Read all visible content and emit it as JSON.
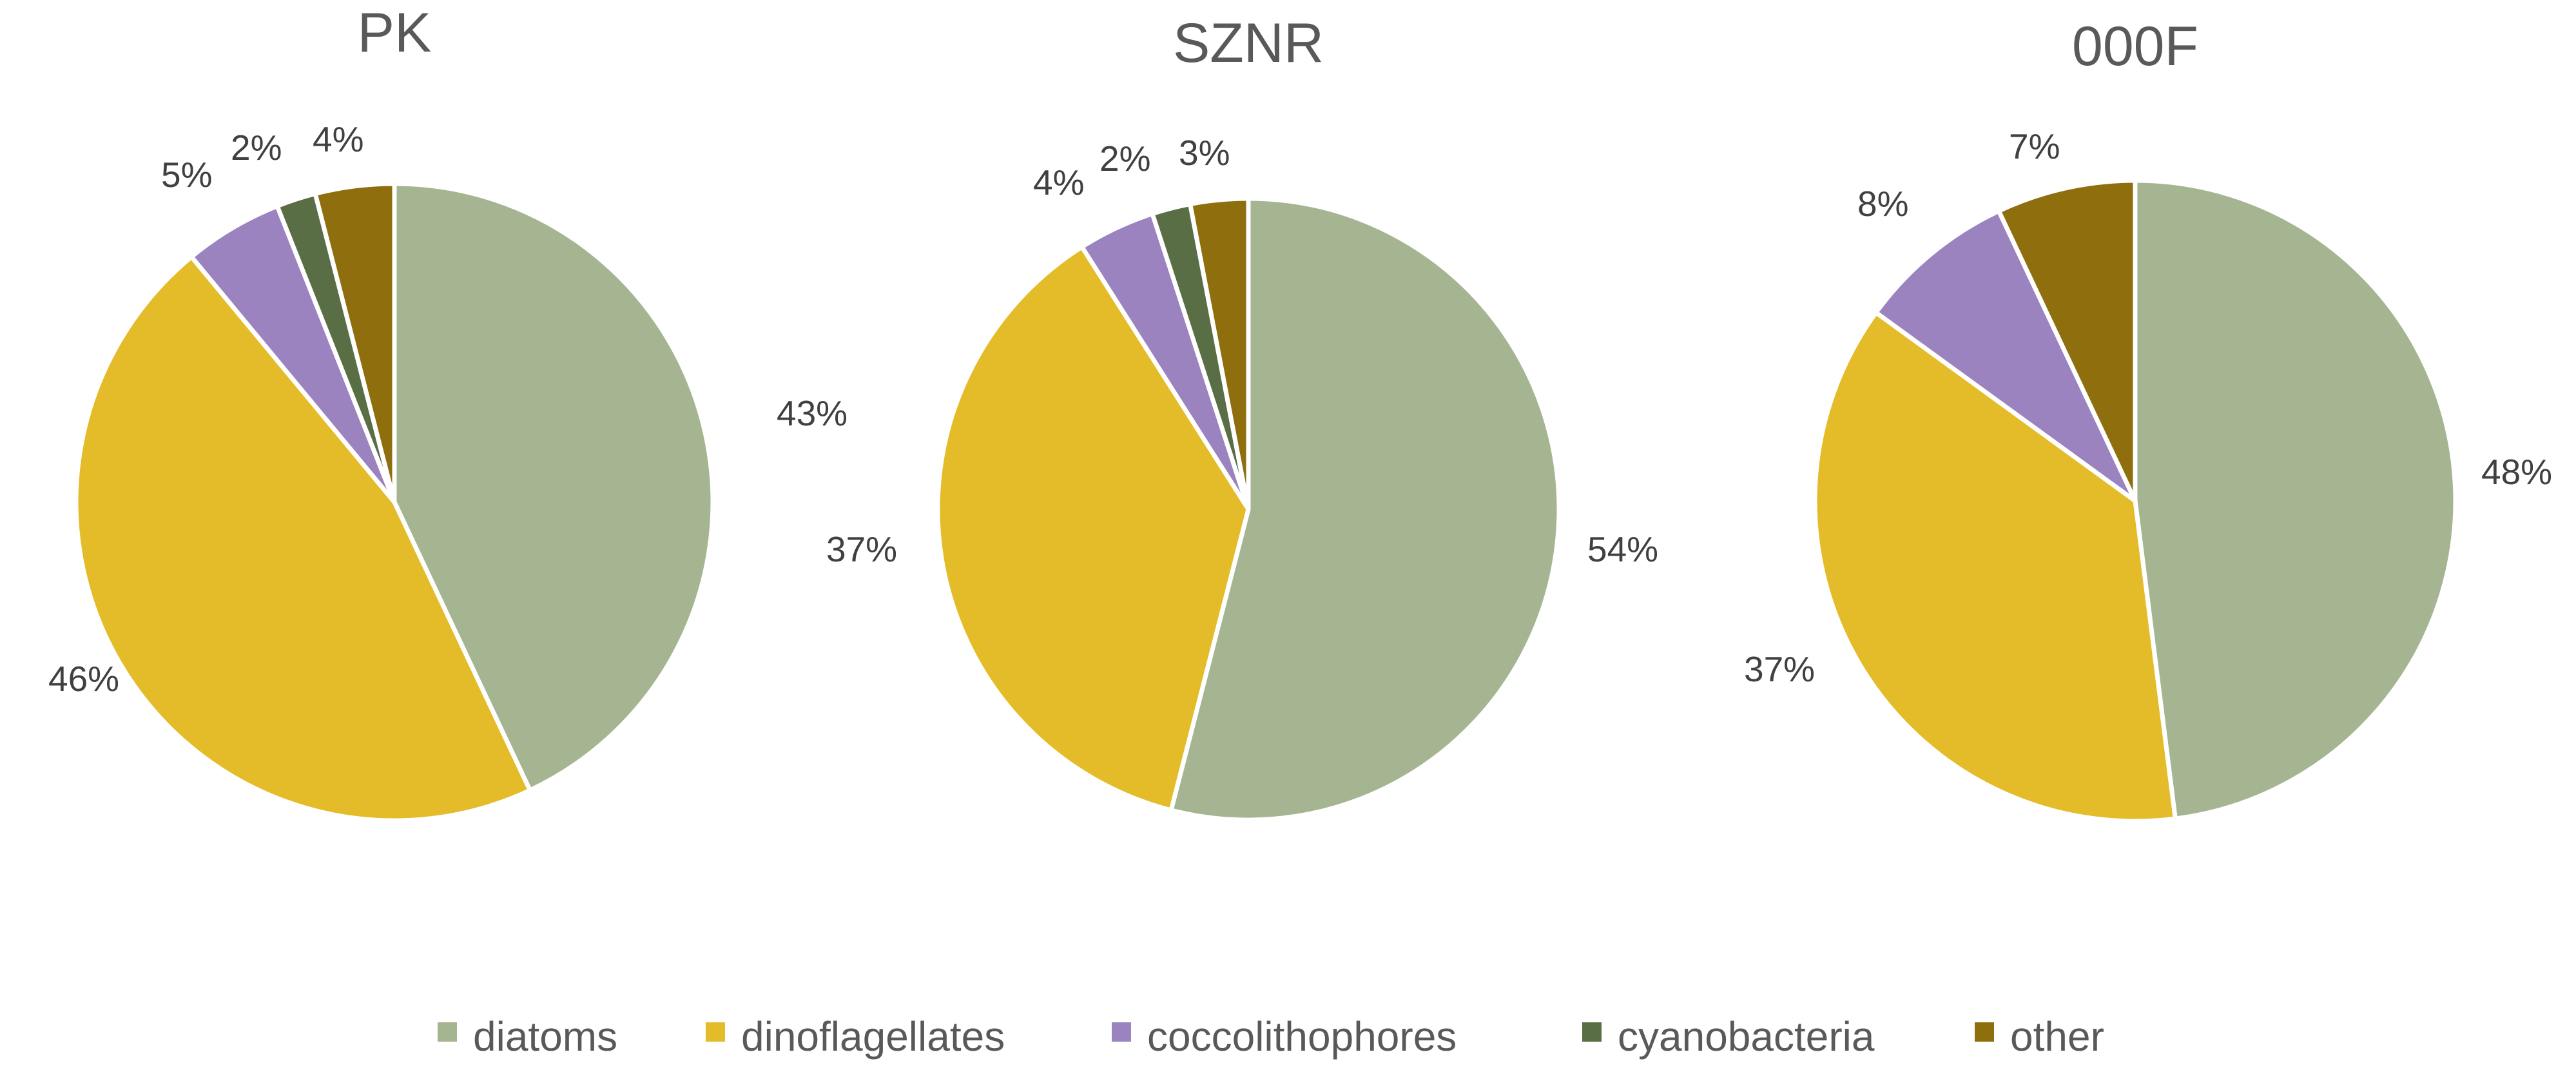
{
  "chart_data": [
    {
      "type": "pie",
      "title": "PK",
      "categories": [
        "diatoms",
        "dinoflagellates",
        "coccolithophores",
        "cyanobacteria",
        "other"
      ],
      "values": [
        43,
        46,
        5,
        2,
        4
      ],
      "labels": [
        "43%",
        "46%",
        "5%",
        "2%",
        "4%"
      ]
    },
    {
      "type": "pie",
      "title": "SZNR",
      "categories": [
        "diatoms",
        "dinoflagellates",
        "coccolithophores",
        "cyanobacteria",
        "other"
      ],
      "values": [
        54,
        37,
        4,
        2,
        3
      ],
      "labels": [
        "54%",
        "37%",
        "4%",
        "2%",
        "3%"
      ]
    },
    {
      "type": "pie",
      "title": "000F",
      "categories": [
        "diatoms",
        "dinoflagellates",
        "coccolithophores",
        "cyanobacteria",
        "other"
      ],
      "values": [
        48,
        37,
        8,
        0,
        7
      ],
      "labels": [
        "48%",
        "37%",
        "8%",
        "",
        "7%"
      ]
    }
  ],
  "legend": {
    "placement": "bottom",
    "items": [
      {
        "name": "diatoms",
        "color": "#a5b592"
      },
      {
        "name": "dinoflagellates",
        "color": "#e4bc29"
      },
      {
        "name": "coccolithophores",
        "color": "#9b83c0"
      },
      {
        "name": "cyanobacteria",
        "color": "#5a6e45"
      },
      {
        "name": "other",
        "color": "#8f6e0d"
      }
    ]
  }
}
